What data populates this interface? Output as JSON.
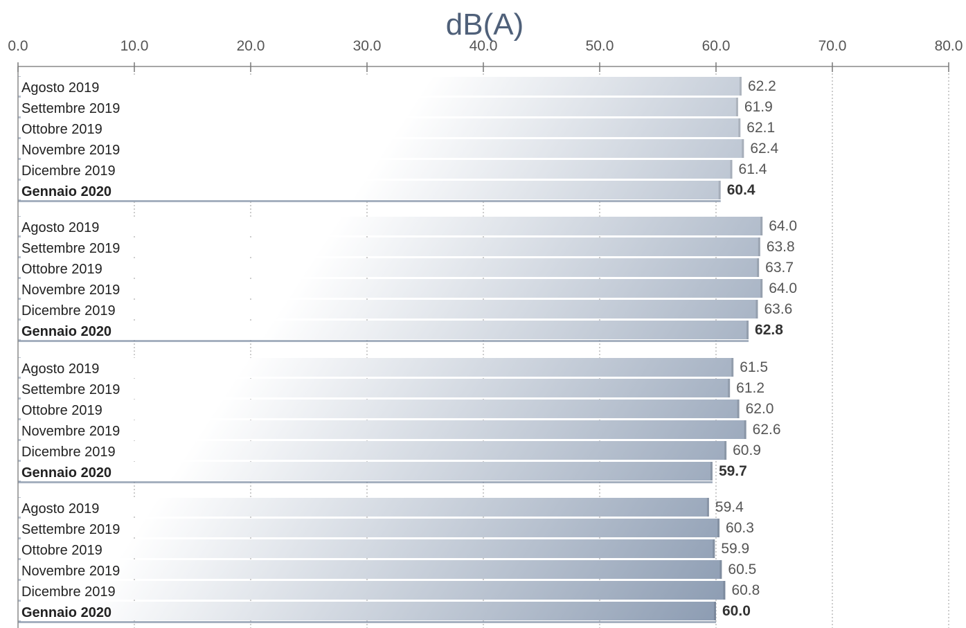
{
  "chart_data": {
    "type": "bar",
    "orientation": "horizontal",
    "unit_title": "dB(A)",
    "xlim": [
      0,
      80
    ],
    "x_ticks": [
      "0.0",
      "10.0",
      "20.0",
      "30.0",
      "40.0",
      "50.0",
      "60.0",
      "70.0",
      "80.0"
    ],
    "grid": "vertical-dotted",
    "gradient_colors": {
      "light": "#ffffff",
      "dark": "#5f7594"
    },
    "groups": [
      {
        "bars": [
          {
            "label": "Agosto 2019",
            "value": 62.2,
            "value_label": "62.2",
            "bold": false
          },
          {
            "label": "Settembre 2019",
            "value": 61.9,
            "value_label": "61.9",
            "bold": false
          },
          {
            "label": "Ottobre 2019",
            "value": 62.1,
            "value_label": "62.1",
            "bold": false
          },
          {
            "label": "Novembre 2019",
            "value": 62.4,
            "value_label": "62.4",
            "bold": false
          },
          {
            "label": "Dicembre 2019",
            "value": 61.4,
            "value_label": "61.4",
            "bold": false
          },
          {
            "label": "Gennaio 2020",
            "value": 60.4,
            "value_label": "60.4",
            "bold": true
          }
        ]
      },
      {
        "bars": [
          {
            "label": "Agosto 2019",
            "value": 64.0,
            "value_label": "64.0",
            "bold": false
          },
          {
            "label": "Settembre 2019",
            "value": 63.8,
            "value_label": "63.8",
            "bold": false
          },
          {
            "label": "Ottobre 2019",
            "value": 63.7,
            "value_label": "63.7",
            "bold": false
          },
          {
            "label": "Novembre 2019",
            "value": 64.0,
            "value_label": "64.0",
            "bold": false
          },
          {
            "label": "Dicembre 2019",
            "value": 63.6,
            "value_label": "63.6",
            "bold": false
          },
          {
            "label": "Gennaio 2020",
            "value": 62.8,
            "value_label": "62.8",
            "bold": true
          }
        ]
      },
      {
        "bars": [
          {
            "label": "Agosto 2019",
            "value": 61.5,
            "value_label": "61.5",
            "bold": false
          },
          {
            "label": "Settembre 2019",
            "value": 61.2,
            "value_label": "61.2",
            "bold": false
          },
          {
            "label": "Ottobre 2019",
            "value": 62.0,
            "value_label": "62.0",
            "bold": false
          },
          {
            "label": "Novembre 2019",
            "value": 62.6,
            "value_label": "62.6",
            "bold": false
          },
          {
            "label": "Dicembre 2019",
            "value": 60.9,
            "value_label": "60.9",
            "bold": false
          },
          {
            "label": "Gennaio 2020",
            "value": 59.7,
            "value_label": "59.7",
            "bold": true
          }
        ]
      },
      {
        "bars": [
          {
            "label": "Agosto 2019",
            "value": 59.4,
            "value_label": "59.4",
            "bold": false
          },
          {
            "label": "Settembre 2019",
            "value": 60.3,
            "value_label": "60.3",
            "bold": false
          },
          {
            "label": "Ottobre 2019",
            "value": 59.9,
            "value_label": "59.9",
            "bold": false
          },
          {
            "label": "Novembre 2019",
            "value": 60.5,
            "value_label": "60.5",
            "bold": false
          },
          {
            "label": "Dicembre 2019",
            "value": 60.8,
            "value_label": "60.8",
            "bold": false
          },
          {
            "label": "Gennaio 2020",
            "value": 60.0,
            "value_label": "60.0",
            "bold": true
          }
        ]
      }
    ]
  }
}
